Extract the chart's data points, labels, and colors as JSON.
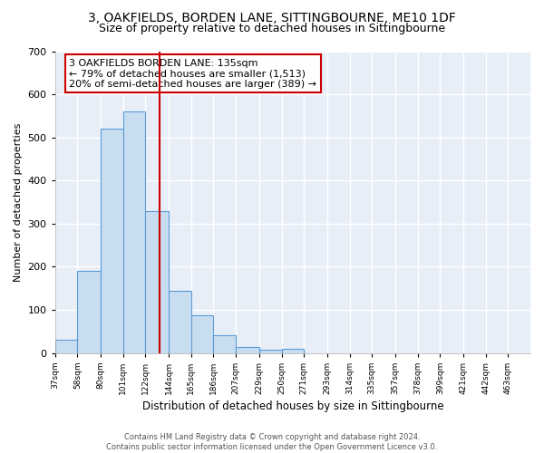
{
  "title1": "3, OAKFIELDS, BORDEN LANE, SITTINGBOURNE, ME10 1DF",
  "title2": "Size of property relative to detached houses in Sittingbourne",
  "xlabel": "Distribution of detached houses by size in Sittingbourne",
  "ylabel": "Number of detached properties",
  "bar_edges": [
    37,
    58,
    80,
    101,
    122,
    144,
    165,
    186,
    207,
    229,
    250,
    271,
    293,
    314,
    335,
    357,
    378,
    399,
    421,
    442,
    463
  ],
  "bar_heights": [
    30,
    190,
    520,
    560,
    330,
    145,
    88,
    42,
    15,
    8,
    10,
    0,
    0,
    0,
    0,
    0,
    0,
    0,
    0,
    0
  ],
  "bar_color": "#c8ddf0",
  "bar_edge_color": "#5b9bd5",
  "red_line_x": 135,
  "red_line_color": "#cc0000",
  "annotation_text": "3 OAKFIELDS BORDEN LANE: 135sqm\n← 79% of detached houses are smaller (1,513)\n20% of semi-detached houses are larger (389) →",
  "annotation_box_color": "white",
  "annotation_box_edge": "#cc0000",
  "ylim": [
    0,
    700
  ],
  "yticks": [
    0,
    100,
    200,
    300,
    400,
    500,
    600,
    700
  ],
  "footnote": "Contains HM Land Registry data © Crown copyright and database right 2024.\nContains public sector information licensed under the Open Government Licence v3.0.",
  "bg_color": "#ffffff",
  "plot_bg_color": "#e8eef8",
  "grid_color": "#ffffff",
  "title1_fontsize": 10,
  "title2_fontsize": 9
}
